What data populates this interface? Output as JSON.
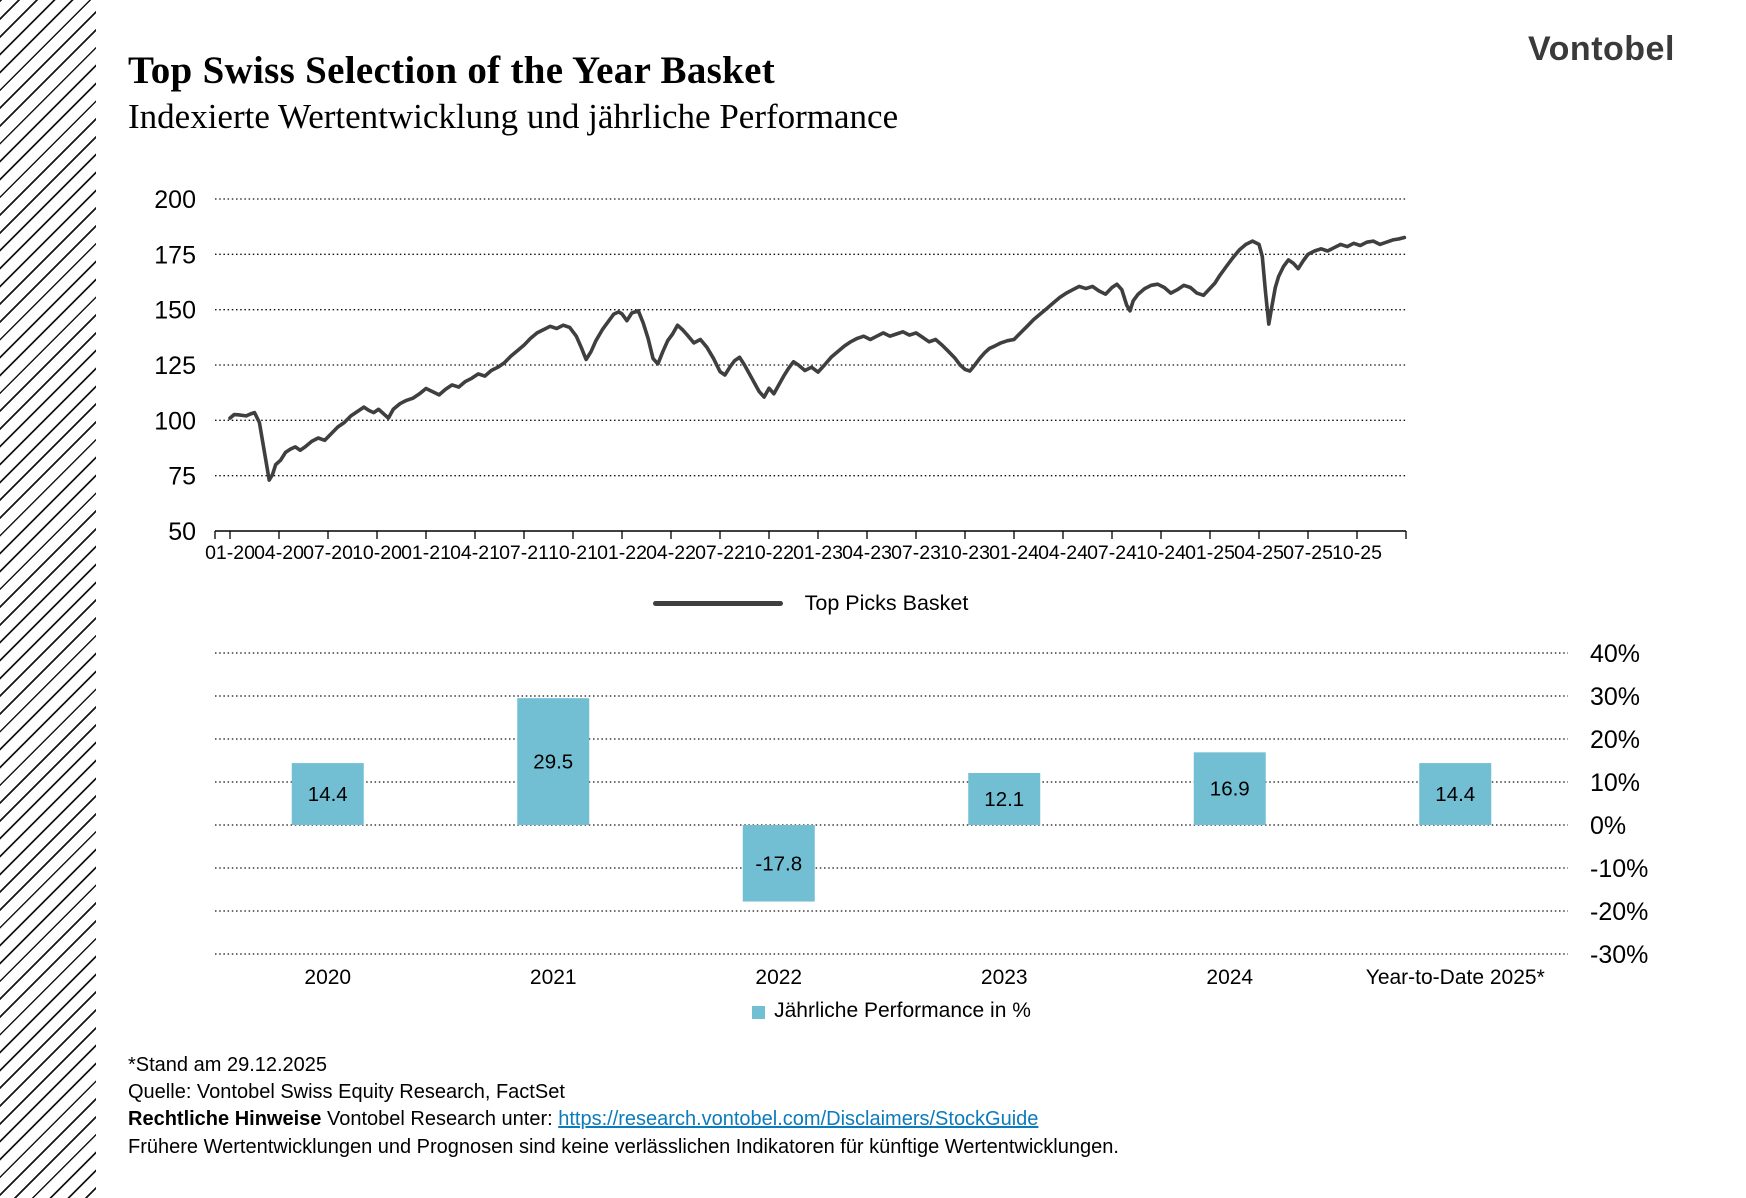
{
  "header": {
    "title": "Top Swiss Selection of the Year Basket",
    "subtitle": "Indexierte Wertentwicklung und jährliche Performance",
    "logo": "Vontobel"
  },
  "chart_data": [
    {
      "type": "line",
      "legend": "Top Picks Basket",
      "color": "#3f3f3f",
      "x_unit": "months since January 2020 (label 01-20)",
      "x_tick_labels": [
        "01-20",
        "04-20",
        "07-20",
        "10-20",
        "01-21",
        "04-21",
        "07-21",
        "10-21",
        "01-22",
        "04-22",
        "07-22",
        "10-22",
        "01-23",
        "04-23",
        "07-23",
        "10-23",
        "01-24",
        "04-24",
        "07-24",
        "10-24",
        "01-25",
        "04-25",
        "07-25",
        "10-25"
      ],
      "y_ticks": [
        200,
        175,
        150,
        125,
        100,
        75,
        50
      ],
      "ylim": [
        50,
        200
      ],
      "points": [
        [
          0,
          101
        ],
        [
          0.5,
          102.5
        ],
        [
          1,
          102
        ],
        [
          1.5,
          103.5
        ],
        [
          1.8,
          99
        ],
        [
          2.1,
          86
        ],
        [
          2.4,
          73
        ],
        [
          2.6,
          75.5
        ],
        [
          2.8,
          80
        ],
        [
          3.1,
          82
        ],
        [
          3.4,
          85.5
        ],
        [
          3.7,
          87
        ],
        [
          4,
          88
        ],
        [
          4.3,
          86.5
        ],
        [
          4.6,
          88
        ],
        [
          5,
          90.5
        ],
        [
          5.4,
          92
        ],
        [
          5.8,
          91
        ],
        [
          6.2,
          94
        ],
        [
          6.6,
          97
        ],
        [
          7,
          99
        ],
        [
          7.4,
          102
        ],
        [
          7.8,
          104
        ],
        [
          8.2,
          106
        ],
        [
          8.5,
          104.5
        ],
        [
          8.8,
          103.5
        ],
        [
          9.1,
          105
        ],
        [
          9.4,
          103
        ],
        [
          9.7,
          101
        ],
        [
          10,
          105
        ],
        [
          10.4,
          107.5
        ],
        [
          10.8,
          109
        ],
        [
          11.2,
          110
        ],
        [
          11.6,
          112
        ],
        [
          12,
          114.4
        ],
        [
          12.4,
          113
        ],
        [
          12.8,
          111.5
        ],
        [
          13.2,
          114
        ],
        [
          13.6,
          116
        ],
        [
          14,
          115
        ],
        [
          14.4,
          117.5
        ],
        [
          14.8,
          119
        ],
        [
          15.2,
          121
        ],
        [
          15.6,
          120
        ],
        [
          16,
          122.5
        ],
        [
          16.4,
          124
        ],
        [
          16.8,
          126
        ],
        [
          17.2,
          129
        ],
        [
          17.6,
          131.5
        ],
        [
          18,
          134
        ],
        [
          18.4,
          137
        ],
        [
          18.8,
          139.5
        ],
        [
          19.2,
          141
        ],
        [
          19.6,
          142.5
        ],
        [
          20,
          141.5
        ],
        [
          20.4,
          143
        ],
        [
          20.8,
          142
        ],
        [
          21.2,
          138
        ],
        [
          21.5,
          133
        ],
        [
          21.8,
          127.5
        ],
        [
          22.1,
          131
        ],
        [
          22.4,
          136
        ],
        [
          22.8,
          141
        ],
        [
          23.2,
          145
        ],
        [
          23.5,
          148
        ],
        [
          23.8,
          149
        ],
        [
          24,
          148.1
        ],
        [
          24.3,
          145
        ],
        [
          24.6,
          148.5
        ],
        [
          25,
          149.5
        ],
        [
          25.3,
          144
        ],
        [
          25.6,
          137
        ],
        [
          25.9,
          128
        ],
        [
          26.2,
          125.5
        ],
        [
          26.5,
          131
        ],
        [
          26.8,
          136
        ],
        [
          27.1,
          139
        ],
        [
          27.4,
          143
        ],
        [
          27.7,
          141
        ],
        [
          28,
          138.5
        ],
        [
          28.4,
          135
        ],
        [
          28.8,
          136.5
        ],
        [
          29.2,
          133
        ],
        [
          29.6,
          128
        ],
        [
          30,
          122
        ],
        [
          30.3,
          120.5
        ],
        [
          30.6,
          124
        ],
        [
          30.9,
          127
        ],
        [
          31.2,
          128.5
        ],
        [
          31.5,
          125
        ],
        [
          31.8,
          121
        ],
        [
          32.1,
          117
        ],
        [
          32.4,
          113
        ],
        [
          32.7,
          110.5
        ],
        [
          33,
          114.5
        ],
        [
          33.3,
          112
        ],
        [
          33.6,
          116
        ],
        [
          33.9,
          120
        ],
        [
          34.2,
          123.5
        ],
        [
          34.5,
          126.5
        ],
        [
          34.8,
          125
        ],
        [
          35.2,
          122.5
        ],
        [
          35.6,
          124
        ],
        [
          36,
          121.8
        ],
        [
          36.4,
          125
        ],
        [
          36.8,
          128.5
        ],
        [
          37.2,
          131
        ],
        [
          37.6,
          133.5
        ],
        [
          38,
          135.5
        ],
        [
          38.4,
          137
        ],
        [
          38.8,
          138
        ],
        [
          39.2,
          136.5
        ],
        [
          39.6,
          138
        ],
        [
          40,
          139.5
        ],
        [
          40.4,
          138
        ],
        [
          40.8,
          139
        ],
        [
          41.2,
          140
        ],
        [
          41.6,
          138.5
        ],
        [
          42,
          139.5
        ],
        [
          42.4,
          137.5
        ],
        [
          42.8,
          135.5
        ],
        [
          43.2,
          136.5
        ],
        [
          43.6,
          134
        ],
        [
          44,
          131
        ],
        [
          44.4,
          128
        ],
        [
          44.7,
          125
        ],
        [
          45,
          123
        ],
        [
          45.3,
          122.3
        ],
        [
          45.6,
          125
        ],
        [
          45.9,
          128
        ],
        [
          46.2,
          130.5
        ],
        [
          46.5,
          132.5
        ],
        [
          46.8,
          133.5
        ],
        [
          47.2,
          135
        ],
        [
          47.6,
          136
        ],
        [
          48,
          136.5
        ],
        [
          48.4,
          139.5
        ],
        [
          48.8,
          142.5
        ],
        [
          49.2,
          145.5
        ],
        [
          49.6,
          148
        ],
        [
          50,
          150.5
        ],
        [
          50.4,
          153
        ],
        [
          50.8,
          155.5
        ],
        [
          51.2,
          157.5
        ],
        [
          51.6,
          159
        ],
        [
          52,
          160.5
        ],
        [
          52.4,
          159.5
        ],
        [
          52.8,
          160.5
        ],
        [
          53.2,
          158.5
        ],
        [
          53.6,
          157
        ],
        [
          54,
          160
        ],
        [
          54.3,
          161.5
        ],
        [
          54.6,
          159
        ],
        [
          54.9,
          152
        ],
        [
          55.1,
          149.5
        ],
        [
          55.3,
          154
        ],
        [
          55.6,
          157
        ],
        [
          56,
          159.5
        ],
        [
          56.4,
          161
        ],
        [
          56.8,
          161.5
        ],
        [
          57.2,
          160
        ],
        [
          57.6,
          157.5
        ],
        [
          58,
          159
        ],
        [
          58.4,
          161
        ],
        [
          58.8,
          160
        ],
        [
          59.2,
          157.5
        ],
        [
          59.6,
          156.5
        ],
        [
          60,
          159.6
        ],
        [
          60.3,
          162
        ],
        [
          60.6,
          165.5
        ],
        [
          61,
          169.5
        ],
        [
          61.4,
          173.5
        ],
        [
          61.8,
          177
        ],
        [
          62.2,
          179.5
        ],
        [
          62.6,
          181
        ],
        [
          63,
          179.5
        ],
        [
          63.2,
          174
        ],
        [
          63.4,
          158
        ],
        [
          63.6,
          143.5
        ],
        [
          63.8,
          152
        ],
        [
          64,
          160
        ],
        [
          64.2,
          165
        ],
        [
          64.5,
          169.5
        ],
        [
          64.8,
          172.5
        ],
        [
          65.1,
          171
        ],
        [
          65.4,
          168.5
        ],
        [
          65.7,
          172
        ],
        [
          66,
          175
        ],
        [
          66.4,
          176.5
        ],
        [
          66.8,
          177.5
        ],
        [
          67.2,
          176.5
        ],
        [
          67.6,
          178
        ],
        [
          68,
          179.5
        ],
        [
          68.4,
          178.5
        ],
        [
          68.8,
          180
        ],
        [
          69.2,
          179
        ],
        [
          69.6,
          180.5
        ],
        [
          70,
          181
        ],
        [
          70.4,
          179.5
        ],
        [
          70.8,
          180.5
        ],
        [
          71.2,
          181.5
        ],
        [
          71.6,
          182
        ],
        [
          71.9,
          182.6
        ]
      ]
    },
    {
      "type": "bar",
      "legend": "Jährliche Performance in %",
      "color": "#72bfd3",
      "categories": [
        "2020",
        "2021",
        "2022",
        "2023",
        "2024",
        "Year-to-Date 2025*"
      ],
      "values": [
        14.4,
        29.5,
        -17.8,
        12.1,
        16.9,
        14.4
      ],
      "bar_labels": [
        "14.4",
        "29.5",
        "-17.8",
        "12.1",
        "16.9",
        "14.4"
      ],
      "y_tick_labels": [
        "40%",
        "30%",
        "20%",
        "10%",
        "0%",
        "-10%",
        "-20%",
        "-30%"
      ],
      "y_ticks": [
        40,
        30,
        20,
        10,
        0,
        -10,
        -20,
        -30
      ],
      "ylim": [
        -30,
        40
      ]
    }
  ],
  "footer": {
    "line1": "*Stand am 29.12.2025",
    "line2": "Quelle: Vontobel Swiss Equity Research, FactSet",
    "line3_bold": "Rechtliche Hinweise",
    "line3_text": " Vontobel Research unter: ",
    "line3_link": "https://research.vontobel.com/Disclaimers/StockGuide",
    "line4": "Frühere Wertentwicklungen und Prognosen sind keine verlässlichen Indikatoren für künftige Wertentwicklungen.",
    "link_color": "#0c7bbb"
  }
}
